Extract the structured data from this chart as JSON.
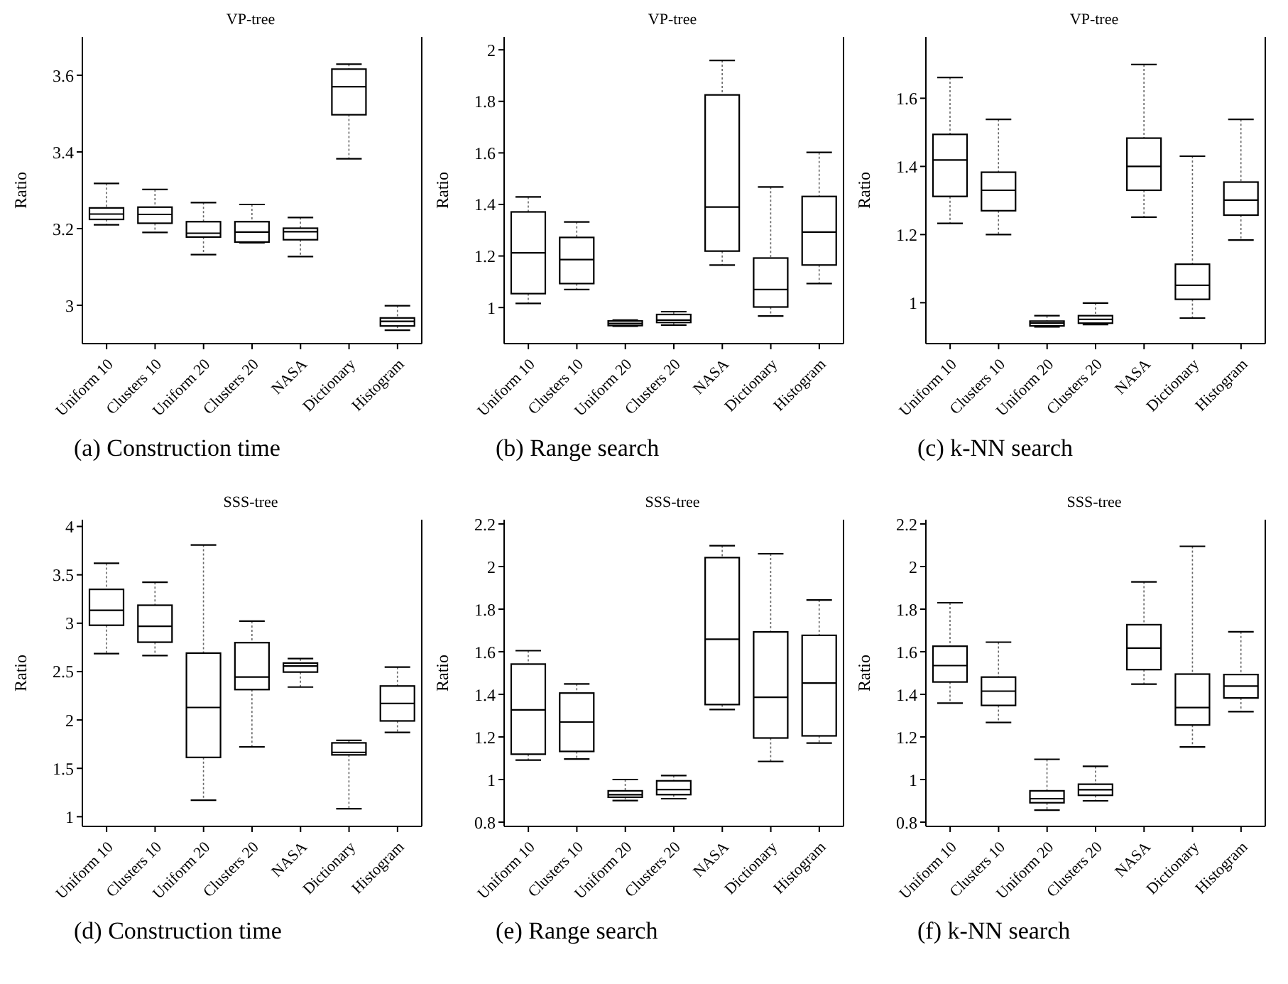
{
  "chart_data": [
    {
      "type": "box",
      "title": "VP-tree",
      "ylabel": "Ratio",
      "xlabel": "(a) Construction time",
      "color": "#000000",
      "categories": [
        "Uniform 10",
        "Clusters 10",
        "Uniform 20",
        "Clusters 20",
        "NASA",
        "Dictionary",
        "Histogram"
      ],
      "ylim": [
        2.9,
        3.7
      ],
      "yticks": [
        3,
        3.2,
        3.4,
        3.6
      ],
      "boxes": [
        {
          "low": 3.21,
          "q1": 3.224,
          "median": 3.238,
          "q3": 3.254,
          "high": 3.318
        },
        {
          "low": 3.19,
          "q1": 3.214,
          "median": 3.237,
          "q3": 3.256,
          "high": 3.302
        },
        {
          "low": 3.132,
          "q1": 3.178,
          "median": 3.188,
          "q3": 3.218,
          "high": 3.268
        },
        {
          "low": 3.163,
          "q1": 3.165,
          "median": 3.191,
          "q3": 3.218,
          "high": 3.263
        },
        {
          "low": 3.127,
          "q1": 3.171,
          "median": 3.192,
          "q3": 3.201,
          "high": 3.229
        },
        {
          "low": 3.382,
          "q1": 3.497,
          "median": 3.57,
          "q3": 3.616,
          "high": 3.629
        },
        {
          "low": 2.935,
          "q1": 2.946,
          "median": 2.958,
          "q3": 2.967,
          "high": 2.999
        }
      ]
    },
    {
      "type": "box",
      "title": "VP-tree",
      "ylabel": "Ratio",
      "xlabel": "(b) Range search",
      "color": "#000000",
      "categories": [
        "Uniform 10",
        "Clusters 10",
        "Uniform 20",
        "Clusters 20",
        "NASA",
        "Dictionary",
        "Histogram"
      ],
      "ylim": [
        0.86,
        2.05
      ],
      "yticks": [
        1,
        1.2,
        1.4,
        1.6,
        1.8,
        2
      ],
      "boxes": [
        {
          "low": 1.016,
          "q1": 1.054,
          "median": 1.212,
          "q3": 1.371,
          "high": 1.429
        },
        {
          "low": 1.07,
          "q1": 1.093,
          "median": 1.186,
          "q3": 1.272,
          "high": 1.332
        },
        {
          "low": 0.928,
          "q1": 0.93,
          "median": 0.938,
          "q3": 0.948,
          "high": 0.951
        },
        {
          "low": 0.932,
          "q1": 0.942,
          "median": 0.951,
          "q3": 0.973,
          "high": 0.984
        },
        {
          "low": 1.165,
          "q1": 1.219,
          "median": 1.39,
          "q3": 1.825,
          "high": 1.959
        },
        {
          "low": 0.967,
          "q1": 1.002,
          "median": 1.07,
          "q3": 1.192,
          "high": 1.468
        },
        {
          "low": 1.093,
          "q1": 1.165,
          "median": 1.293,
          "q3": 1.431,
          "high": 1.602
        }
      ]
    },
    {
      "type": "box",
      "title": "VP-tree",
      "ylabel": "Ratio",
      "xlabel": "(c) k-NN search",
      "color": "#000000",
      "categories": [
        "Uniform 10",
        "Clusters 10",
        "Uniform 20",
        "Clusters 20",
        "NASA",
        "Dictionary",
        "Histogram"
      ],
      "ylim": [
        0.88,
        1.78
      ],
      "yticks": [
        1,
        1.2,
        1.4,
        1.6
      ],
      "boxes": [
        {
          "low": 1.233,
          "q1": 1.312,
          "median": 1.419,
          "q3": 1.494,
          "high": 1.661
        },
        {
          "low": 1.2,
          "q1": 1.27,
          "median": 1.33,
          "q3": 1.383,
          "high": 1.538
        },
        {
          "low": 0.929,
          "q1": 0.932,
          "median": 0.94,
          "q3": 0.946,
          "high": 0.962
        },
        {
          "low": 0.936,
          "q1": 0.94,
          "median": 0.951,
          "q3": 0.962,
          "high": 0.999
        },
        {
          "low": 1.251,
          "q1": 1.33,
          "median": 1.4,
          "q3": 1.483,
          "high": 1.699
        },
        {
          "low": 0.955,
          "q1": 1.01,
          "median": 1.051,
          "q3": 1.113,
          "high": 1.43
        },
        {
          "low": 1.184,
          "q1": 1.257,
          "median": 1.301,
          "q3": 1.354,
          "high": 1.538
        }
      ]
    },
    {
      "type": "box",
      "title": "SSS-tree",
      "ylabel": "Ratio",
      "xlabel": "(d) Construction time",
      "color": "#000000",
      "categories": [
        "Uniform 10",
        "Clusters 10",
        "Uniform 20",
        "Clusters 20",
        "NASA",
        "Dictionary",
        "Histogram"
      ],
      "ylim": [
        0.9,
        4.07
      ],
      "yticks": [
        1,
        1.5,
        2,
        2.5,
        3,
        3.5,
        4
      ],
      "boxes": [
        {
          "low": 2.686,
          "q1": 2.979,
          "median": 3.134,
          "q3": 3.35,
          "high": 3.619
        },
        {
          "low": 2.665,
          "q1": 2.804,
          "median": 2.969,
          "q3": 3.186,
          "high": 3.423
        },
        {
          "low": 1.17,
          "q1": 1.613,
          "median": 2.129,
          "q3": 2.691,
          "high": 3.809
        },
        {
          "low": 1.722,
          "q1": 2.314,
          "median": 2.443,
          "q3": 2.799,
          "high": 3.021
        },
        {
          "low": 2.34,
          "q1": 2.495,
          "median": 2.557,
          "q3": 2.588,
          "high": 2.634
        },
        {
          "low": 1.082,
          "q1": 1.639,
          "median": 1.665,
          "q3": 1.763,
          "high": 1.789
        },
        {
          "low": 1.871,
          "q1": 1.99,
          "median": 2.17,
          "q3": 2.351,
          "high": 2.546
        }
      ]
    },
    {
      "type": "box",
      "title": "SSS-tree",
      "ylabel": "Ratio",
      "xlabel": "(e) Range search",
      "color": "#000000",
      "categories": [
        "Uniform 10",
        "Clusters 10",
        "Uniform 20",
        "Clusters 20",
        "NASA",
        "Dictionary",
        "Histogram"
      ],
      "ylim": [
        0.78,
        2.22
      ],
      "yticks": [
        0.8,
        1,
        1.2,
        1.4,
        1.6,
        1.8,
        2,
        2.2
      ],
      "boxes": [
        {
          "low": 1.091,
          "q1": 1.119,
          "median": 1.327,
          "q3": 1.542,
          "high": 1.605
        },
        {
          "low": 1.096,
          "q1": 1.132,
          "median": 1.27,
          "q3": 1.406,
          "high": 1.449
        },
        {
          "low": 0.901,
          "q1": 0.917,
          "median": 0.929,
          "q3": 0.947,
          "high": 1.0
        },
        {
          "low": 0.91,
          "q1": 0.929,
          "median": 0.953,
          "q3": 0.994,
          "high": 1.019
        },
        {
          "low": 1.329,
          "q1": 1.352,
          "median": 1.659,
          "q3": 2.042,
          "high": 2.098
        },
        {
          "low": 1.085,
          "q1": 1.195,
          "median": 1.386,
          "q3": 1.693,
          "high": 2.06
        },
        {
          "low": 1.171,
          "q1": 1.205,
          "median": 1.453,
          "q3": 1.677,
          "high": 1.843
        }
      ]
    },
    {
      "type": "box",
      "title": "SSS-tree",
      "ylabel": "Ratio",
      "xlabel": "(f) k-NN search",
      "color": "#000000",
      "categories": [
        "Uniform 10",
        "Clusters 10",
        "Uniform 20",
        "Clusters 20",
        "NASA",
        "Dictionary",
        "Histogram"
      ],
      "ylim": [
        0.78,
        2.22
      ],
      "yticks": [
        0.8,
        1,
        1.2,
        1.4,
        1.6,
        1.8,
        2,
        2.2
      ],
      "boxes": [
        {
          "low": 1.359,
          "q1": 1.458,
          "median": 1.535,
          "q3": 1.626,
          "high": 1.83
        },
        {
          "low": 1.268,
          "q1": 1.348,
          "median": 1.415,
          "q3": 1.481,
          "high": 1.645
        },
        {
          "low": 0.856,
          "q1": 0.891,
          "median": 0.91,
          "q3": 0.947,
          "high": 1.095
        },
        {
          "low": 0.9,
          "q1": 0.926,
          "median": 0.952,
          "q3": 0.978,
          "high": 1.062
        },
        {
          "low": 1.448,
          "q1": 1.516,
          "median": 1.617,
          "q3": 1.727,
          "high": 1.928
        },
        {
          "low": 1.153,
          "q1": 1.256,
          "median": 1.338,
          "q3": 1.495,
          "high": 2.095
        },
        {
          "low": 1.319,
          "q1": 1.383,
          "median": 1.439,
          "q3": 1.493,
          "high": 1.694
        }
      ]
    }
  ]
}
